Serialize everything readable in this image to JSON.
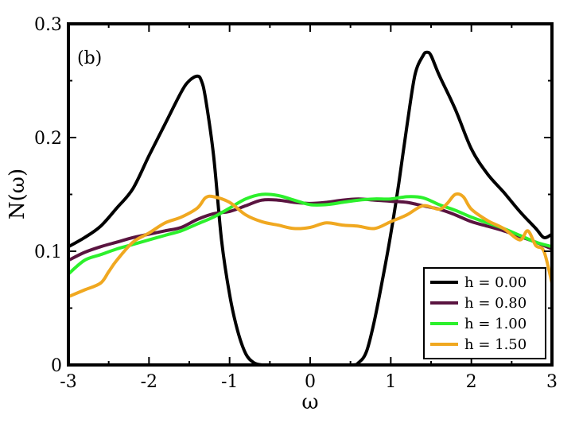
{
  "chart_data": {
    "type": "line",
    "panel_label": "(b)",
    "xlabel": "ω",
    "ylabel": "N(ω)",
    "xlim": [
      -3,
      3
    ],
    "ylim": [
      0,
      0.3
    ],
    "xticks": [
      -3,
      -2,
      -1,
      0,
      1,
      2,
      3
    ],
    "xtick_labels": [
      "-3",
      "-2",
      "-1",
      "0",
      "1",
      "2",
      "3"
    ],
    "yticks": [
      0,
      0.1,
      0.2,
      0.3
    ],
    "ytick_labels": [
      "0",
      "0.1",
      "0.2",
      "0.3"
    ],
    "grid": false,
    "legend_position": "bottom-right",
    "series": [
      {
        "name": "h = 0.00",
        "color": "#000000",
        "x": [
          -3.0,
          -2.8,
          -2.6,
          -2.4,
          -2.2,
          -2.0,
          -1.8,
          -1.6,
          -1.5,
          -1.4,
          -1.35,
          -1.3,
          -1.2,
          -1.1,
          -1.0,
          -0.9,
          -0.8,
          -0.7,
          -0.6,
          -0.5,
          0.0,
          0.5,
          0.6,
          0.7,
          0.8,
          0.9,
          1.0,
          1.1,
          1.2,
          1.3,
          1.4,
          1.45,
          1.5,
          1.6,
          1.8,
          2.0,
          2.2,
          2.4,
          2.6,
          2.8,
          2.9,
          3.0
        ],
        "values": [
          0.104,
          0.112,
          0.122,
          0.138,
          0.155,
          0.184,
          0.212,
          0.24,
          0.25,
          0.254,
          0.25,
          0.235,
          0.185,
          0.11,
          0.062,
          0.03,
          0.01,
          0.002,
          0.0,
          0.0,
          0.0,
          0.0,
          0.002,
          0.012,
          0.04,
          0.076,
          0.115,
          0.16,
          0.21,
          0.255,
          0.272,
          0.275,
          0.272,
          0.255,
          0.225,
          0.19,
          0.168,
          0.152,
          0.135,
          0.12,
          0.112,
          0.115
        ]
      },
      {
        "name": "h = 0.80",
        "color": "#5a1440",
        "x": [
          -3.0,
          -2.8,
          -2.6,
          -2.4,
          -2.2,
          -2.0,
          -1.8,
          -1.6,
          -1.4,
          -1.2,
          -1.0,
          -0.8,
          -0.6,
          -0.4,
          -0.2,
          0.0,
          0.2,
          0.4,
          0.6,
          0.8,
          1.0,
          1.2,
          1.4,
          1.6,
          1.8,
          2.0,
          2.2,
          2.4,
          2.6,
          2.8,
          3.0
        ],
        "values": [
          0.092,
          0.099,
          0.104,
          0.108,
          0.112,
          0.115,
          0.118,
          0.121,
          0.128,
          0.133,
          0.135,
          0.14,
          0.145,
          0.145,
          0.143,
          0.142,
          0.143,
          0.145,
          0.146,
          0.145,
          0.144,
          0.143,
          0.14,
          0.137,
          0.132,
          0.126,
          0.122,
          0.118,
          0.113,
          0.108,
          0.102
        ]
      },
      {
        "name": "h = 1.00",
        "color": "#2cf02c",
        "x": [
          -3.0,
          -2.8,
          -2.6,
          -2.4,
          -2.2,
          -2.0,
          -1.8,
          -1.6,
          -1.4,
          -1.2,
          -1.0,
          -0.8,
          -0.6,
          -0.4,
          -0.2,
          0.0,
          0.2,
          0.4,
          0.6,
          0.8,
          1.0,
          1.2,
          1.4,
          1.6,
          1.8,
          2.0,
          2.2,
          2.4,
          2.6,
          2.8,
          3.0
        ],
        "values": [
          0.08,
          0.092,
          0.097,
          0.102,
          0.106,
          0.11,
          0.114,
          0.118,
          0.124,
          0.13,
          0.138,
          0.146,
          0.15,
          0.149,
          0.145,
          0.141,
          0.141,
          0.143,
          0.145,
          0.146,
          0.146,
          0.148,
          0.147,
          0.141,
          0.136,
          0.13,
          0.125,
          0.12,
          0.114,
          0.108,
          0.104
        ]
      },
      {
        "name": "h = 1.50",
        "color": "#f0a820",
        "x": [
          -3.0,
          -2.8,
          -2.6,
          -2.5,
          -2.4,
          -2.2,
          -2.0,
          -1.8,
          -1.6,
          -1.4,
          -1.3,
          -1.2,
          -1.0,
          -0.8,
          -0.6,
          -0.4,
          -0.2,
          0.0,
          0.2,
          0.4,
          0.6,
          0.8,
          1.0,
          1.2,
          1.4,
          1.6,
          1.7,
          1.8,
          1.9,
          2.0,
          2.2,
          2.4,
          2.6,
          2.7,
          2.8,
          2.9,
          3.0
        ],
        "values": [
          0.06,
          0.066,
          0.072,
          0.082,
          0.092,
          0.108,
          0.116,
          0.125,
          0.13,
          0.138,
          0.147,
          0.148,
          0.143,
          0.132,
          0.126,
          0.123,
          0.12,
          0.121,
          0.125,
          0.123,
          0.122,
          0.12,
          0.126,
          0.132,
          0.14,
          0.137,
          0.142,
          0.15,
          0.148,
          0.137,
          0.127,
          0.12,
          0.11,
          0.118,
          0.105,
          0.1,
          0.072
        ]
      }
    ]
  }
}
